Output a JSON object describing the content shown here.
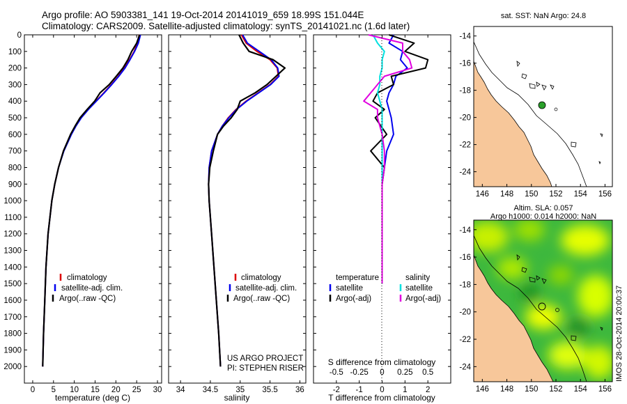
{
  "header": {
    "line1": "Argo profile: AO 5903381_141 19-Oct-2014 20141019_659 18.99S 151.044E",
    "line2": "Climatology: CARS2009. Satellite-adjusted climatology: synTS_20141021.nc (1.6d later)"
  },
  "colors": {
    "climatology": "#dd0000",
    "satellite": "#0000ee",
    "argo": "#000000",
    "salinity_sat": "#00e0e0",
    "salinity_argo": "#e000e0",
    "land": "#f7c79a",
    "sla_green": "#2aa02a",
    "sla_yellow": "#e6ff00"
  },
  "chart_data": [
    {
      "type": "line",
      "xlabel": "temperature (deg C)",
      "xticks": [
        "0",
        "5",
        "10",
        "15",
        "20",
        "25",
        "30"
      ],
      "xlim": [
        -2,
        31
      ],
      "ylim": [
        0,
        2100
      ],
      "yticks": [
        "0",
        "100",
        "200",
        "300",
        "400",
        "500",
        "600",
        "700",
        "800",
        "900",
        "1000",
        "1100",
        "1200",
        "1300",
        "1400",
        "1500",
        "1600",
        "1700",
        "1800",
        "1900",
        "2000"
      ],
      "legend": [
        "climatology",
        "satellite-adj. clim.",
        "Argo(..raw -QC)"
      ],
      "depth": [
        0,
        50,
        100,
        150,
        200,
        250,
        300,
        350,
        400,
        450,
        500,
        550,
        600,
        700,
        800,
        900,
        1000,
        1200,
        1400,
        1600,
        1800,
        2000
      ],
      "series": [
        {
          "name": "climatology",
          "values": [
            25.6,
            25.2,
            24.4,
            23.3,
            22.0,
            20.6,
            18.9,
            17.1,
            15.2,
            13.3,
            11.6,
            10.3,
            9.2,
            7.4,
            6.2,
            5.3,
            4.6,
            3.7,
            3.2,
            2.9,
            2.6,
            2.4
          ]
        },
        {
          "name": "satellite-adj. clim.",
          "values": [
            25.9,
            25.4,
            24.5,
            23.4,
            22.2,
            20.7,
            19.0,
            17.2,
            15.3,
            13.4,
            11.7,
            10.4,
            9.3,
            7.5,
            6.2,
            5.3,
            4.6,
            3.7,
            3.2,
            2.9,
            2.6,
            2.4
          ]
        },
        {
          "name": "Argo(..raw -QC)",
          "values": [
            25.7,
            25.0,
            23.8,
            22.9,
            21.7,
            20.1,
            18.4,
            16.2,
            14.9,
            13.1,
            11.4,
            10.2,
            9.1,
            7.4,
            6.2,
            5.3,
            4.6,
            3.7,
            3.2,
            2.9,
            2.6,
            2.4
          ]
        }
      ]
    },
    {
      "type": "line",
      "xlabel": "salinity",
      "xticks": [
        "34",
        "34.5",
        "35",
        "35.5",
        "36"
      ],
      "xlim": [
        33.8,
        36.1
      ],
      "legend": [
        "climatology",
        "satellite-adj. clim.",
        "Argo(..raw -QC)"
      ],
      "depth": [
        0,
        50,
        100,
        150,
        200,
        250,
        300,
        350,
        400,
        450,
        500,
        550,
        600,
        700,
        800,
        900,
        1000,
        1200,
        1400,
        1600,
        1800,
        2000
      ],
      "series": [
        {
          "name": "climatology",
          "values": [
            35.02,
            35.1,
            35.28,
            35.5,
            35.62,
            35.64,
            35.5,
            35.3,
            35.1,
            34.93,
            34.8,
            34.7,
            34.62,
            34.52,
            34.48,
            34.47,
            34.48,
            34.52,
            34.56,
            34.6,
            34.64,
            34.67
          ]
        },
        {
          "name": "satellite-adj. clim.",
          "values": [
            35.04,
            35.12,
            35.32,
            35.52,
            35.63,
            35.65,
            35.51,
            35.31,
            35.11,
            34.94,
            34.81,
            34.7,
            34.62,
            34.52,
            34.48,
            34.47,
            34.48,
            34.52,
            34.56,
            34.6,
            34.64,
            34.67
          ]
        },
        {
          "name": "Argo(..raw -QC)",
          "values": [
            34.98,
            35.05,
            35.15,
            35.55,
            35.75,
            35.6,
            35.45,
            35.25,
            35.0,
            34.95,
            34.85,
            34.72,
            34.62,
            34.55,
            34.49,
            34.47,
            34.48,
            34.52,
            34.56,
            34.6,
            34.64,
            34.67
          ]
        }
      ],
      "annotations": [
        "US ARGO PROJECT",
        "PI: STEPHEN RISER"
      ]
    },
    {
      "type": "line",
      "xlabel": "T difference from climatology",
      "x2label": "S difference from climatology",
      "xticks": [
        "-2",
        "-1",
        "0",
        "1",
        "2"
      ],
      "x2ticks": [
        "-0.5",
        "-0.25",
        "0",
        "0.25",
        "0.5"
      ],
      "xlim": [
        -3,
        3
      ],
      "legend_temperature": {
        "title": "temperature",
        "items": [
          "satellite",
          "Argo(-adj)"
        ]
      },
      "legend_salinity": {
        "title": "salinity",
        "items": [
          "satellite",
          "Argo(-adj)"
        ]
      },
      "depth": [
        0,
        50,
        100,
        150,
        200,
        250,
        300,
        350,
        400,
        450,
        500,
        600,
        700,
        800,
        900,
        1000,
        1200,
        1400,
        1500
      ],
      "series": [
        {
          "name": "temperature satellite",
          "values": [
            0.5,
            0.3,
            0.9,
            0.8,
            1.1,
            0.6,
            0.5,
            0.3,
            0.2,
            0.3,
            0.4,
            0.5,
            0.2,
            0.1,
            0.0,
            0.0,
            0.0,
            0.0,
            0.0
          ]
        },
        {
          "name": "temperature Argo(-adj)",
          "values": [
            0.3,
            1.4,
            1.0,
            2.0,
            1.9,
            0.4,
            0.5,
            -0.2,
            -0.4,
            0.1,
            -0.3,
            0.2,
            -0.5,
            0.1,
            0.0,
            0.0,
            0.0,
            0.0,
            0.0
          ]
        },
        {
          "name": "salinity satellite",
          "values": [
            -0.4,
            -0.2,
            0.1,
            0.0,
            0.0,
            -0.1,
            -0.1,
            -0.2,
            -0.1,
            0.0,
            0.0,
            0.0,
            0.0,
            0.0,
            0.0,
            0.0,
            0.0,
            0.0,
            0.0
          ]
        },
        {
          "name": "salinity Argo(-adj)",
          "values": [
            -0.6,
            0.9,
            0.9,
            1.2,
            1.3,
            0.1,
            -0.2,
            -0.5,
            -0.8,
            -0.2,
            -0.2,
            0.0,
            0.1,
            0.1,
            0.0,
            0.0,
            0.0,
            0.0,
            0.0
          ]
        }
      ]
    }
  ],
  "map_sst": {
    "title": "sat. SST: NaN Argo: 24.8",
    "xticks": [
      "146",
      "148",
      "150",
      "152",
      "154",
      "156"
    ],
    "yticks": [
      "-14",
      "-16",
      "-18",
      "-20",
      "-22",
      "-24"
    ]
  },
  "map_sla": {
    "title1": "Altim. SLA: 0.057",
    "title2": "Argo h1000: 0.014 h2000: NaN",
    "xticks": [
      "146",
      "148",
      "150",
      "152",
      "154",
      "156"
    ],
    "yticks": [
      "-14",
      "-16",
      "-18",
      "-20",
      "-22",
      "-24"
    ]
  },
  "watermark": "IMOS 28-Oct-2014 20:00:37"
}
